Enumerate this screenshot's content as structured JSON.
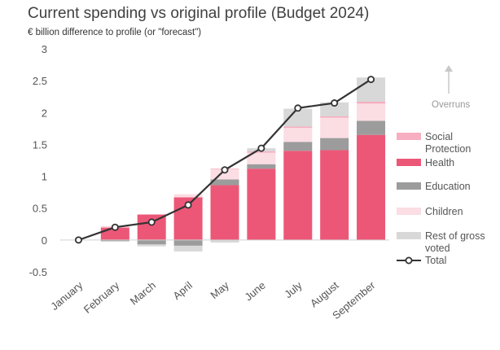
{
  "colors": {
    "social_protection": "#f7aec0",
    "health": "#ec5778",
    "education": "#9c9c9c",
    "children": "#fbdde4",
    "rest": "#d8d8d8",
    "total_line": "#333333",
    "axis_text": "#555555"
  },
  "chart_data": {
    "type": "bar",
    "stacked": true,
    "title": "Current spending vs original profile (Budget 2024)",
    "subtitle": "€ billion difference to profile (or \"forecast\")",
    "ylim": [
      -0.5,
      3
    ],
    "yticks": [
      -0.5,
      0,
      0.5,
      1,
      1.5,
      2,
      2.5,
      3
    ],
    "ytick_labels": [
      "-0.5",
      "0",
      "0.5",
      "1",
      "1.5",
      "2",
      "2.5",
      "3"
    ],
    "grid": false,
    "legend_position": "right",
    "categories": [
      "January",
      "February",
      "March",
      "April",
      "May",
      "June",
      "July",
      "August",
      "September"
    ],
    "series": [
      {
        "name": "Social Protection",
        "key": "social_protection",
        "values": [
          0,
          0.02,
          0,
          0,
          0.01,
          0.02,
          0.02,
          0.02,
          0.03
        ]
      },
      {
        "name": "Health",
        "key": "health",
        "values": [
          0,
          0.19,
          0.4,
          0.67,
          0.86,
          1.12,
          1.4,
          1.41,
          1.65
        ]
      },
      {
        "name": "Education",
        "key": "education",
        "values": [
          0,
          -0.02,
          -0.07,
          -0.09,
          0.09,
          0.07,
          0.14,
          0.19,
          0.22
        ]
      },
      {
        "name": "Children",
        "key": "children",
        "values": [
          0,
          0,
          0,
          0.05,
          0.16,
          0.18,
          0.22,
          0.32,
          0.27
        ]
      },
      {
        "name": "Rest of gross voted",
        "key": "rest",
        "values": [
          0,
          0,
          -0.03,
          -0.09,
          -0.04,
          0.05,
          0.28,
          0.22,
          0.38
        ]
      }
    ],
    "total": {
      "name": "Total",
      "values": [
        0,
        0.2,
        0.28,
        0.55,
        1.1,
        1.44,
        2.07,
        2.15,
        2.52
      ]
    },
    "annotation": {
      "text": "Overruns",
      "icon": "arrow-up-icon"
    }
  }
}
